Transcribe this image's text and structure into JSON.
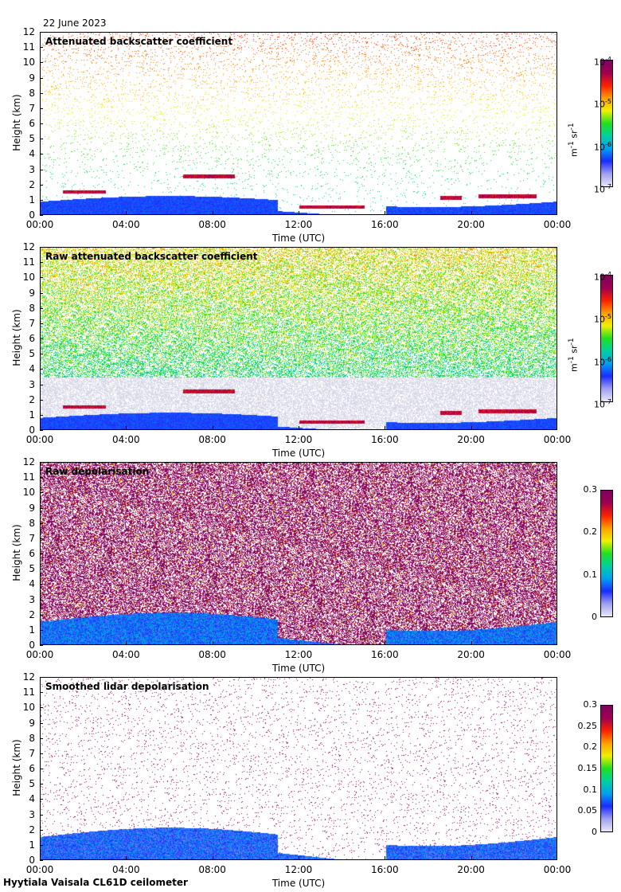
{
  "date": "22 June 2023",
  "footer": "Hyytiala Vaisala CL61D ceilometer",
  "colors": {
    "scale": [
      "#e8e8f8",
      "#9ea0f0",
      "#1b2bff",
      "#00a0f0",
      "#00d0a0",
      "#20e020",
      "#f0f000",
      "#ffa000",
      "#ff2000",
      "#a00050",
      "#800060"
    ],
    "noise_light": "#d8d8e8",
    "depol_magenta": "#880a60"
  },
  "chart_data": [
    {
      "type": "heatmap",
      "title": "Attenuated backscatter coefficient",
      "xlabel": "Time (UTC)",
      "ylabel": "Height (km)",
      "xticks": [
        "00:00",
        "04:00",
        "08:00",
        "12:00",
        "16:00",
        "20:00",
        "00:00"
      ],
      "yticks": [
        "0",
        "1",
        "2",
        "3",
        "4",
        "5",
        "6",
        "7",
        "8",
        "9",
        "10",
        "11",
        "12"
      ],
      "ylim": [
        0,
        12
      ],
      "colorbar": {
        "scale": "log",
        "range": [
          1e-07,
          0.0001
        ],
        "ticks": [
          {
            "base": "10",
            "exp": "-7"
          },
          {
            "base": "10",
            "exp": "-6"
          },
          {
            "base": "10",
            "exp": "-5"
          },
          {
            "base": "10",
            "exp": "-4"
          }
        ],
        "unit_parts": [
          "m",
          "-1",
          " sr",
          "-1"
        ]
      },
      "noise": "sparse",
      "cloud_layers_km": [
        {
          "t_start": 1.0,
          "t_end": 3.0,
          "height": 1.6
        },
        {
          "t_start": 6.6,
          "t_end": 9.0,
          "height": 2.6
        },
        {
          "t_start": 12.0,
          "t_end": 15.0,
          "height": 0.6
        },
        {
          "t_start": 18.5,
          "t_end": 19.5,
          "height": 1.2
        },
        {
          "t_start": 20.3,
          "t_end": 23.0,
          "height": 1.3
        }
      ]
    },
    {
      "type": "heatmap",
      "title": "Raw attenuated backscatter coefficient",
      "xlabel": "Time (UTC)",
      "ylabel": "Height (km)",
      "xticks": [
        "00:00",
        "04:00",
        "08:00",
        "12:00",
        "16:00",
        "20:00",
        "00:00"
      ],
      "yticks": [
        "0",
        "1",
        "2",
        "3",
        "4",
        "5",
        "6",
        "7",
        "8",
        "9",
        "10",
        "11",
        "12"
      ],
      "ylim": [
        0,
        12
      ],
      "colorbar": {
        "scale": "log",
        "range": [
          1e-07,
          0.0001
        ],
        "ticks": [
          {
            "base": "10",
            "exp": "-7"
          },
          {
            "base": "10",
            "exp": "-6"
          },
          {
            "base": "10",
            "exp": "-5"
          },
          {
            "base": "10",
            "exp": "-4"
          }
        ],
        "unit_parts": [
          "m",
          "-1",
          " sr",
          "-1"
        ]
      },
      "noise": "dense-blue",
      "cloud_layers_km": [
        {
          "t_start": 1.0,
          "t_end": 3.0,
          "height": 1.6
        },
        {
          "t_start": 6.6,
          "t_end": 9.0,
          "height": 2.6
        },
        {
          "t_start": 12.0,
          "t_end": 15.0,
          "height": 0.6
        },
        {
          "t_start": 18.5,
          "t_end": 19.5,
          "height": 1.2
        },
        {
          "t_start": 20.3,
          "t_end": 23.0,
          "height": 1.3
        }
      ]
    },
    {
      "type": "heatmap",
      "title": "Raw depolarisation",
      "xlabel": "Time (UTC)",
      "ylabel": "Height (km)",
      "xticks": [
        "00:00",
        "04:00",
        "08:00",
        "12:00",
        "16:00",
        "20:00",
        "00:00"
      ],
      "yticks": [
        "0",
        "1",
        "2",
        "3",
        "4",
        "5",
        "6",
        "7",
        "8",
        "9",
        "10",
        "11",
        "12"
      ],
      "ylim": [
        0,
        12
      ],
      "colorbar": {
        "scale": "linear",
        "range": [
          0,
          0.3
        ],
        "ticks": [
          "0",
          "0.1",
          "0.2",
          "0.3"
        ]
      },
      "noise": "dense-magenta"
    },
    {
      "type": "heatmap",
      "title": "Smoothed lidar depolarisation",
      "xlabel": "Time (UTC)",
      "ylabel": "Height (km)",
      "xticks": [
        "00:00",
        "04:00",
        "08:00",
        "12:00",
        "16:00",
        "20:00",
        "00:00"
      ],
      "yticks": [
        "0",
        "1",
        "2",
        "3",
        "4",
        "5",
        "6",
        "7",
        "8",
        "9",
        "10",
        "11",
        "12"
      ],
      "ylim": [
        0,
        12
      ],
      "colorbar": {
        "scale": "linear",
        "range": [
          0,
          0.3
        ],
        "ticks": [
          "0",
          "0.05",
          "0.1",
          "0.15",
          "0.2",
          "0.25",
          "0.3"
        ]
      },
      "noise": "sparse-magenta"
    }
  ]
}
